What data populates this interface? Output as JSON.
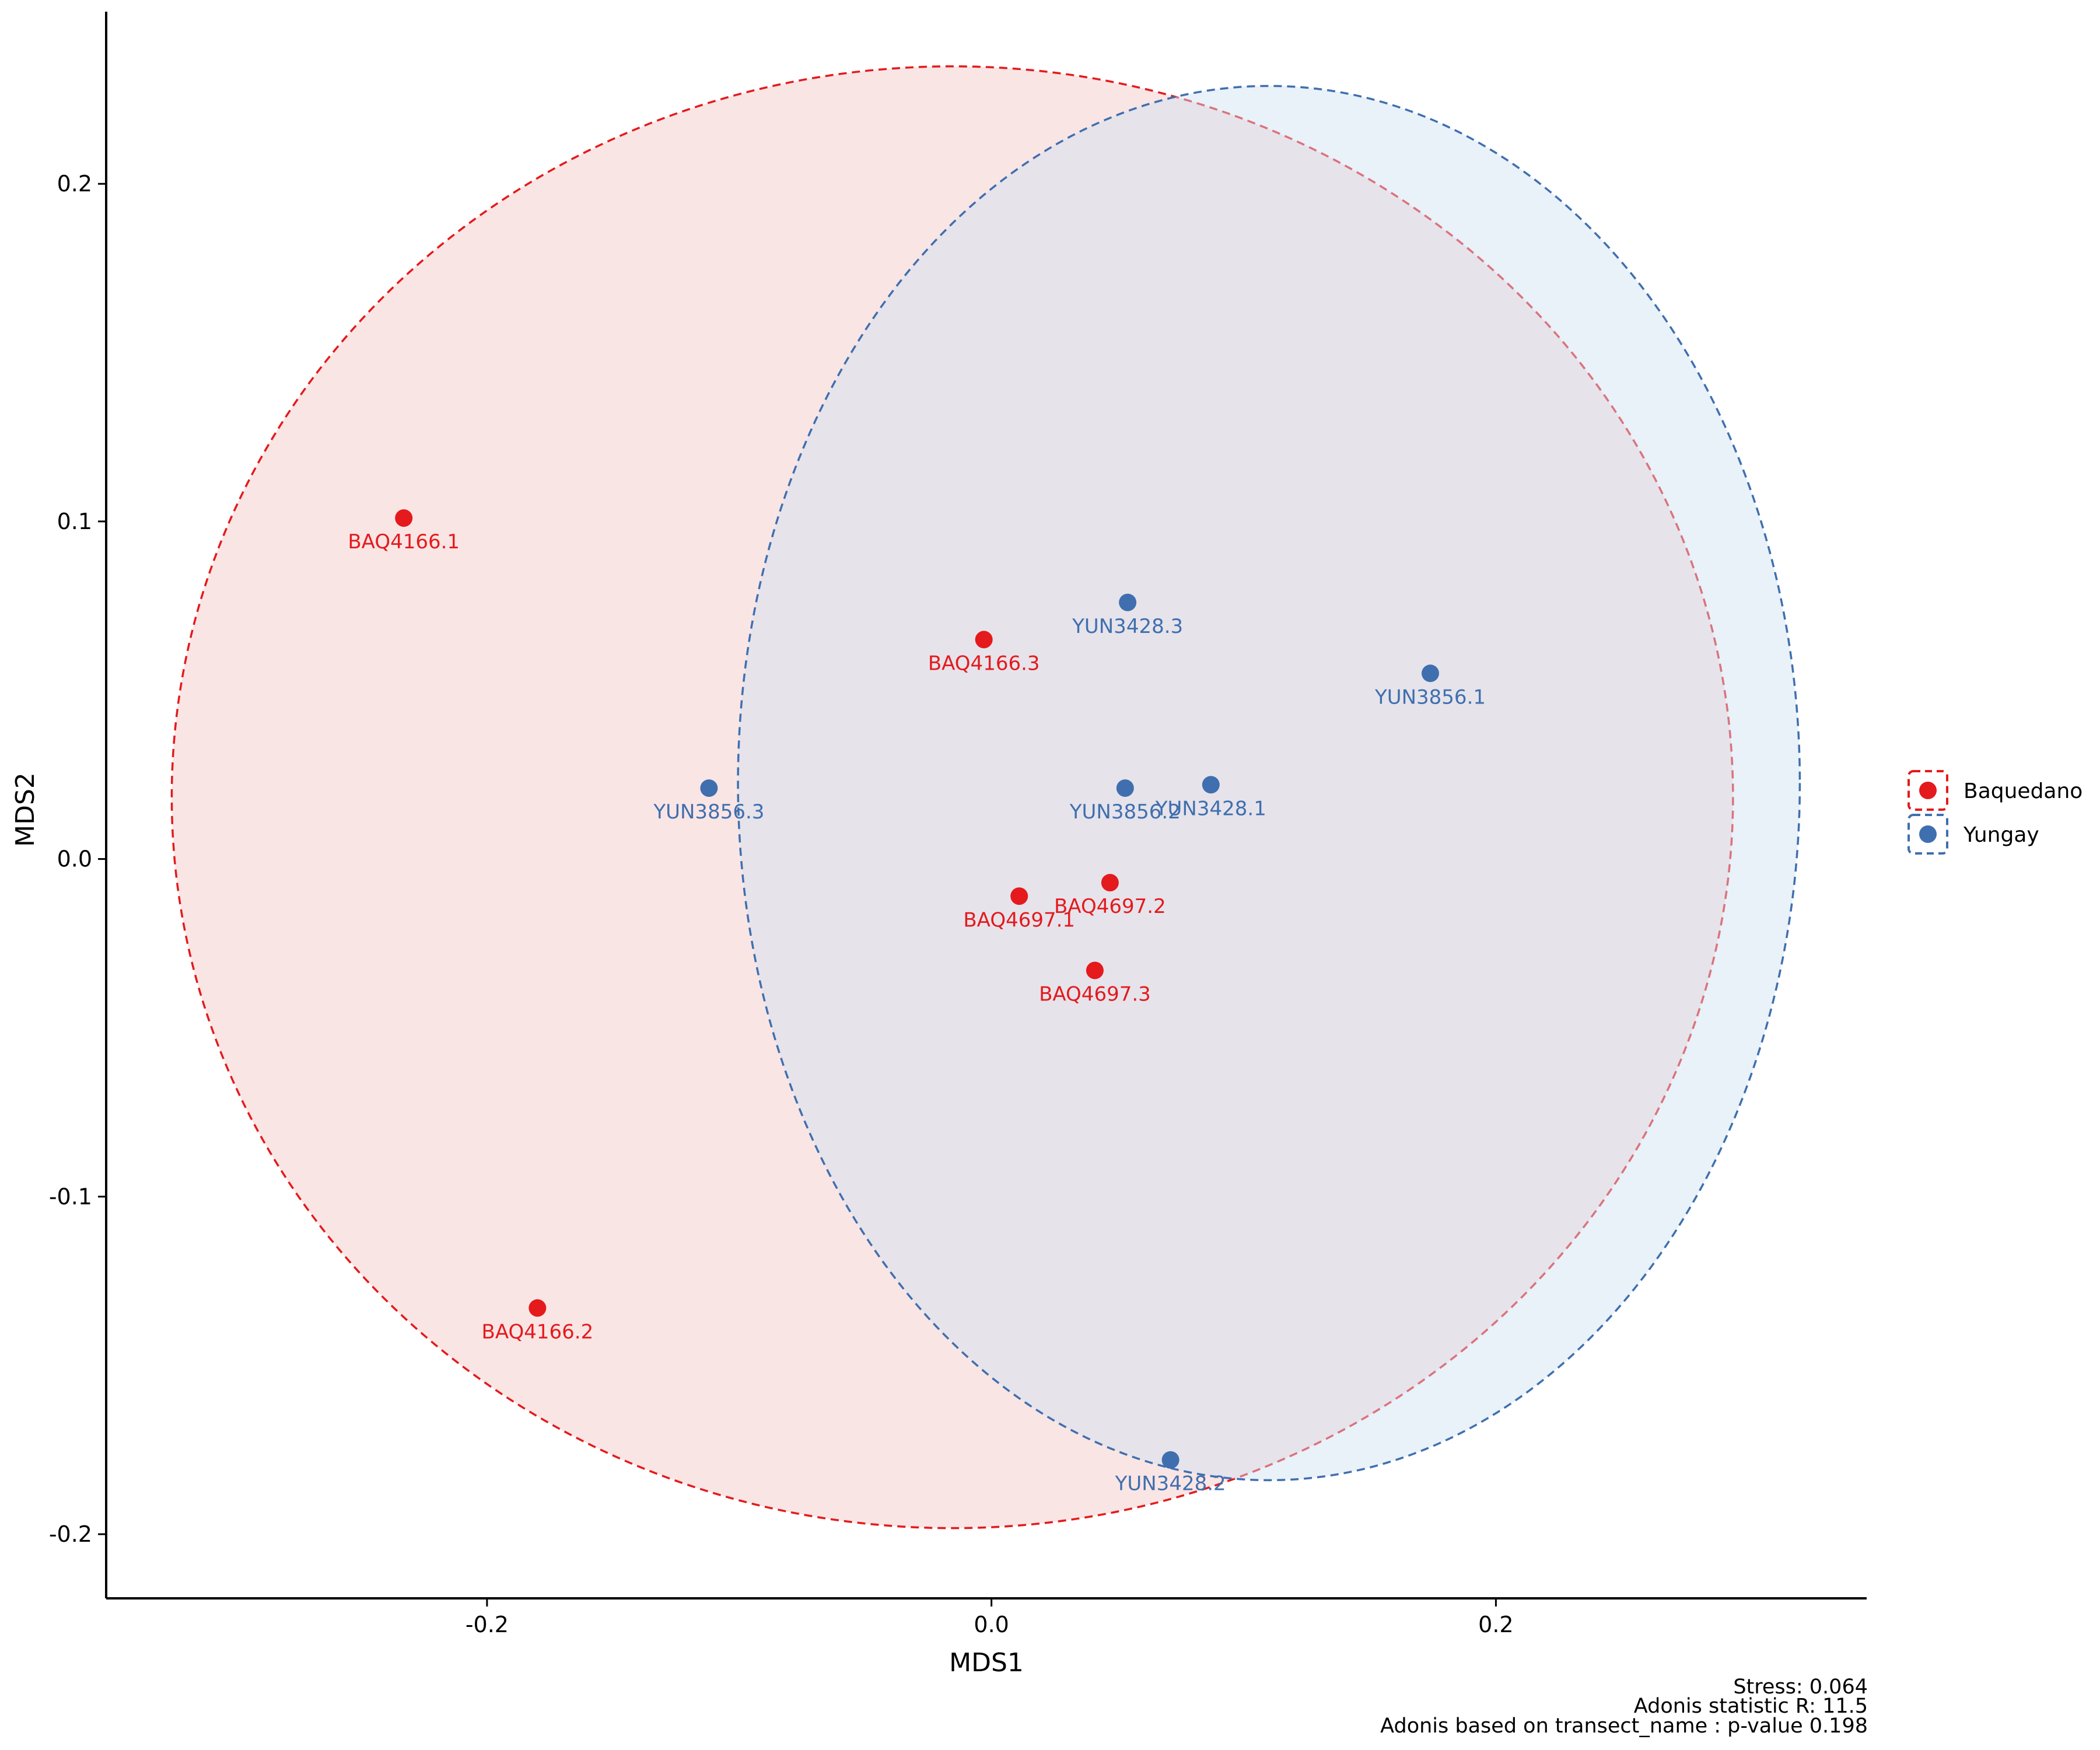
{
  "chart_data": {
    "type": "scatter",
    "title": "",
    "xlabel": "MDS1",
    "ylabel": "MDS2",
    "xlim": [
      -0.351,
      0.347
    ],
    "ylim": [
      -0.219,
      0.251
    ],
    "x_ticks": [
      -0.2,
      0.0,
      0.2
    ],
    "x_tick_labels": [
      "-0.2",
      "0.0",
      "0.2"
    ],
    "y_ticks": [
      -0.2,
      -0.1,
      0.0,
      0.1,
      0.2
    ],
    "y_tick_labels": [
      "-0.2",
      "-0.1",
      "0.0",
      "0.1",
      "0.2"
    ],
    "grid": false,
    "legend_position": "right",
    "series": [
      {
        "name": "Baquedano",
        "color": "#e41a1c",
        "fill": "#f4c5c6",
        "ellipse": {
          "cx": -0.0155,
          "cy": 0.0183,
          "rx": 0.3095,
          "ry": 0.2165
        },
        "points": [
          {
            "label": "BAQ4166.1",
            "x": -0.233,
            "y": 0.101
          },
          {
            "label": "BAQ4166.2",
            "x": -0.18,
            "y": -0.133
          },
          {
            "label": "BAQ4166.3",
            "x": -0.003,
            "y": 0.065
          },
          {
            "label": "BAQ4697.1",
            "x": 0.011,
            "y": -0.011
          },
          {
            "label": "BAQ4697.2",
            "x": 0.047,
            "y": -0.007
          },
          {
            "label": "BAQ4697.3",
            "x": 0.041,
            "y": -0.033
          }
        ]
      },
      {
        "name": "Yungay",
        "color": "#3f6fae",
        "fill": "#cfe0f2",
        "ellipse": {
          "cx": 0.11,
          "cy": 0.0225,
          "rx": 0.2105,
          "ry": 0.2065
        },
        "points": [
          {
            "label": "YUN3428.3",
            "x": 0.054,
            "y": 0.076
          },
          {
            "label": "YUN3856.1",
            "x": 0.174,
            "y": 0.055
          },
          {
            "label": "YUN3856.3",
            "x": -0.112,
            "y": 0.021
          },
          {
            "label": "YUN3856.2",
            "x": 0.053,
            "y": 0.021
          },
          {
            "label": "YUN3428.1",
            "x": 0.087,
            "y": 0.022
          },
          {
            "label": "YUN3428.2",
            "x": 0.071,
            "y": -0.178
          }
        ]
      }
    ],
    "annotations": [
      "Stress: 0.064",
      "Adonis statistic R: 11.5",
      "Adonis based on  transect_name : p-value 0.198"
    ]
  }
}
